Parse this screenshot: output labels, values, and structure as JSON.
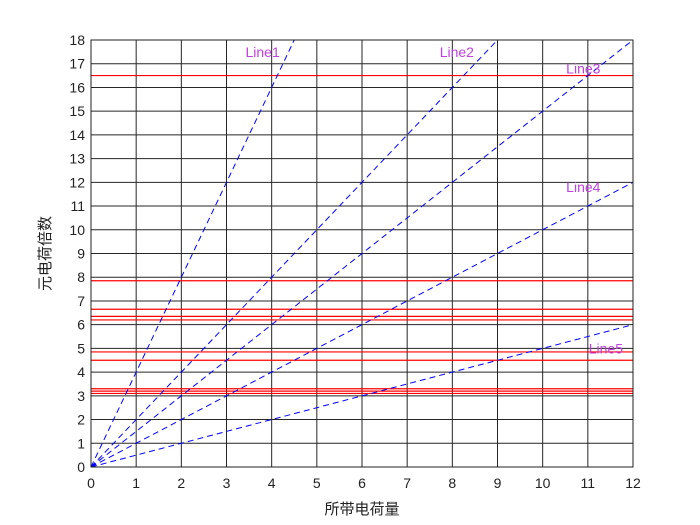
{
  "chart_data": {
    "type": "line",
    "title": "",
    "xlabel": "所带电荷量",
    "ylabel": "元电荷倍数",
    "xlim": [
      0,
      12
    ],
    "ylim": [
      0,
      18
    ],
    "xticks": [
      "0",
      "1",
      "2",
      "3",
      "4",
      "5",
      "6",
      "7",
      "8",
      "9",
      "10",
      "11",
      "12"
    ],
    "yticks": [
      "0",
      "1",
      "2",
      "3",
      "4",
      "5",
      "6",
      "7",
      "8",
      "9",
      "10",
      "11",
      "12",
      "13",
      "14",
      "15",
      "16",
      "17",
      "18"
    ],
    "grid": true,
    "series": [
      {
        "name": "Line1",
        "x": [
          0,
          4.5
        ],
        "y": [
          0,
          18
        ],
        "label_at": [
          3.8,
          17.5
        ],
        "color": "#0000ff"
      },
      {
        "name": "Line2",
        "x": [
          0,
          9
        ],
        "y": [
          0,
          18
        ],
        "label_at": [
          8.1,
          17.5
        ],
        "color": "#0000ff"
      },
      {
        "name": "Line3",
        "x": [
          0,
          12
        ],
        "y": [
          0,
          18
        ],
        "label_at": [
          10.9,
          16.8
        ],
        "color": "#0000ff"
      },
      {
        "name": "Line4",
        "x": [
          0,
          12
        ],
        "y": [
          0,
          12
        ],
        "label_at": [
          10.9,
          11.8
        ],
        "color": "#0000ff"
      },
      {
        "name": "Line5",
        "x": [
          0,
          12
        ],
        "y": [
          0,
          6
        ],
        "label_at": [
          11.4,
          5.0
        ],
        "color": "#0000ff"
      }
    ],
    "horizontal_lines": {
      "color": "#ff0000",
      "y": [
        3.1,
        3.2,
        3.3,
        4.5,
        4.85,
        6.2,
        6.35,
        6.65,
        7.85,
        16.5
      ]
    }
  }
}
